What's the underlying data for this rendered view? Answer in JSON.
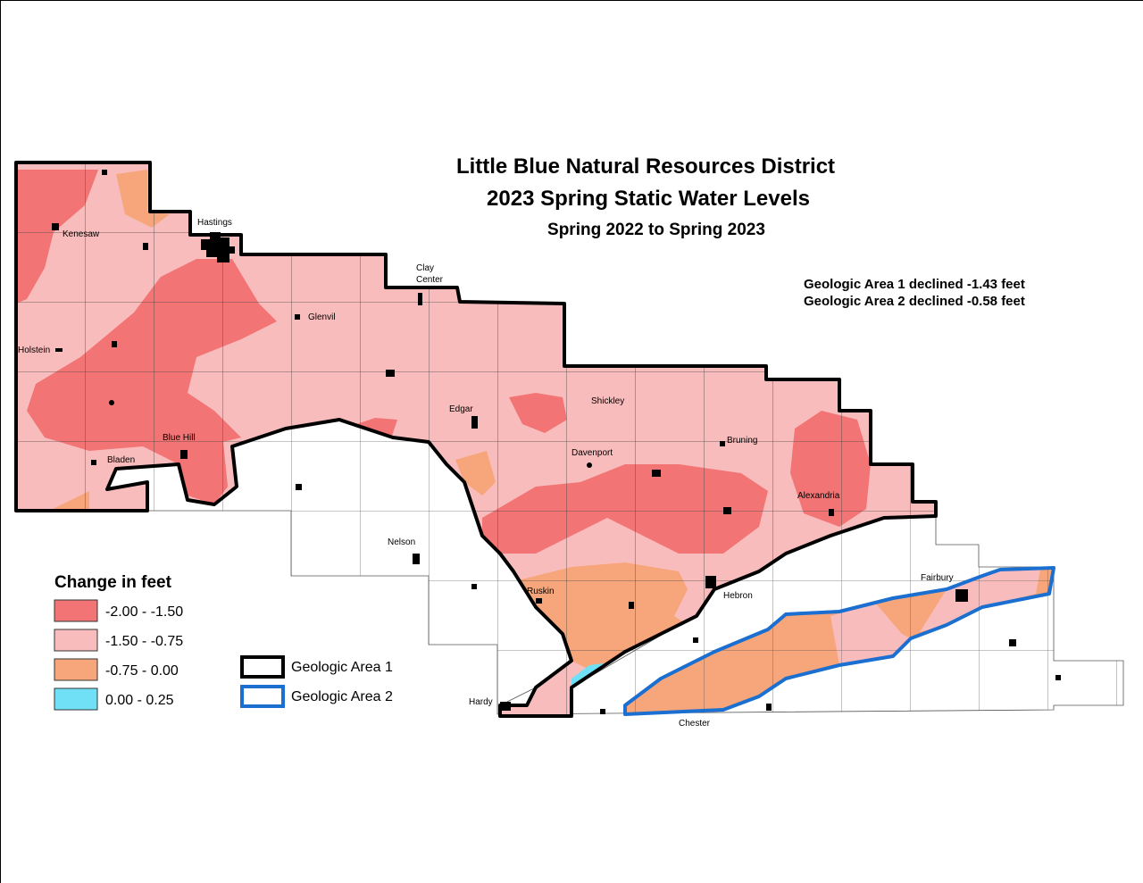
{
  "title": [
    "Little Blue Natural Resources District",
    "2023 Spring Static Water Levels"
  ],
  "subtitle": "Spring 2022 to Spring 2023",
  "annotations": [
    "Geologic Area 1 declined -1.43 feet",
    "Geologic Area 2 declined -0.58 feet"
  ],
  "legend": {
    "title": "Change in feet",
    "classes": [
      {
        "label": "-2.00 - -1.50",
        "color": "#f27474"
      },
      {
        "label": "-1.50 - -0.75",
        "color": "#f9bcbc"
      },
      {
        "label": "-0.75 - 0.00",
        "color": "#f6a67a"
      },
      {
        "label": "0.00 - 0.25",
        "color": "#6fe0f6"
      }
    ],
    "areas": [
      {
        "label": "Geologic Area 1",
        "color": "#000000"
      },
      {
        "label": "Geologic Area 2",
        "color": "#1a6fd0"
      }
    ]
  },
  "towns": [
    "Kenesaw",
    "Hastings",
    [
      "Clay",
      "Center"
    ],
    "Glenvil",
    "Holstein",
    "Edgar",
    "Shickley",
    "Blue Hill",
    "Bladen",
    "Davenport",
    "Bruning",
    "Alexandria",
    "Nelson",
    "Ruskin",
    "Hebron",
    "Fairbury",
    "Hardy",
    "Chester"
  ]
}
